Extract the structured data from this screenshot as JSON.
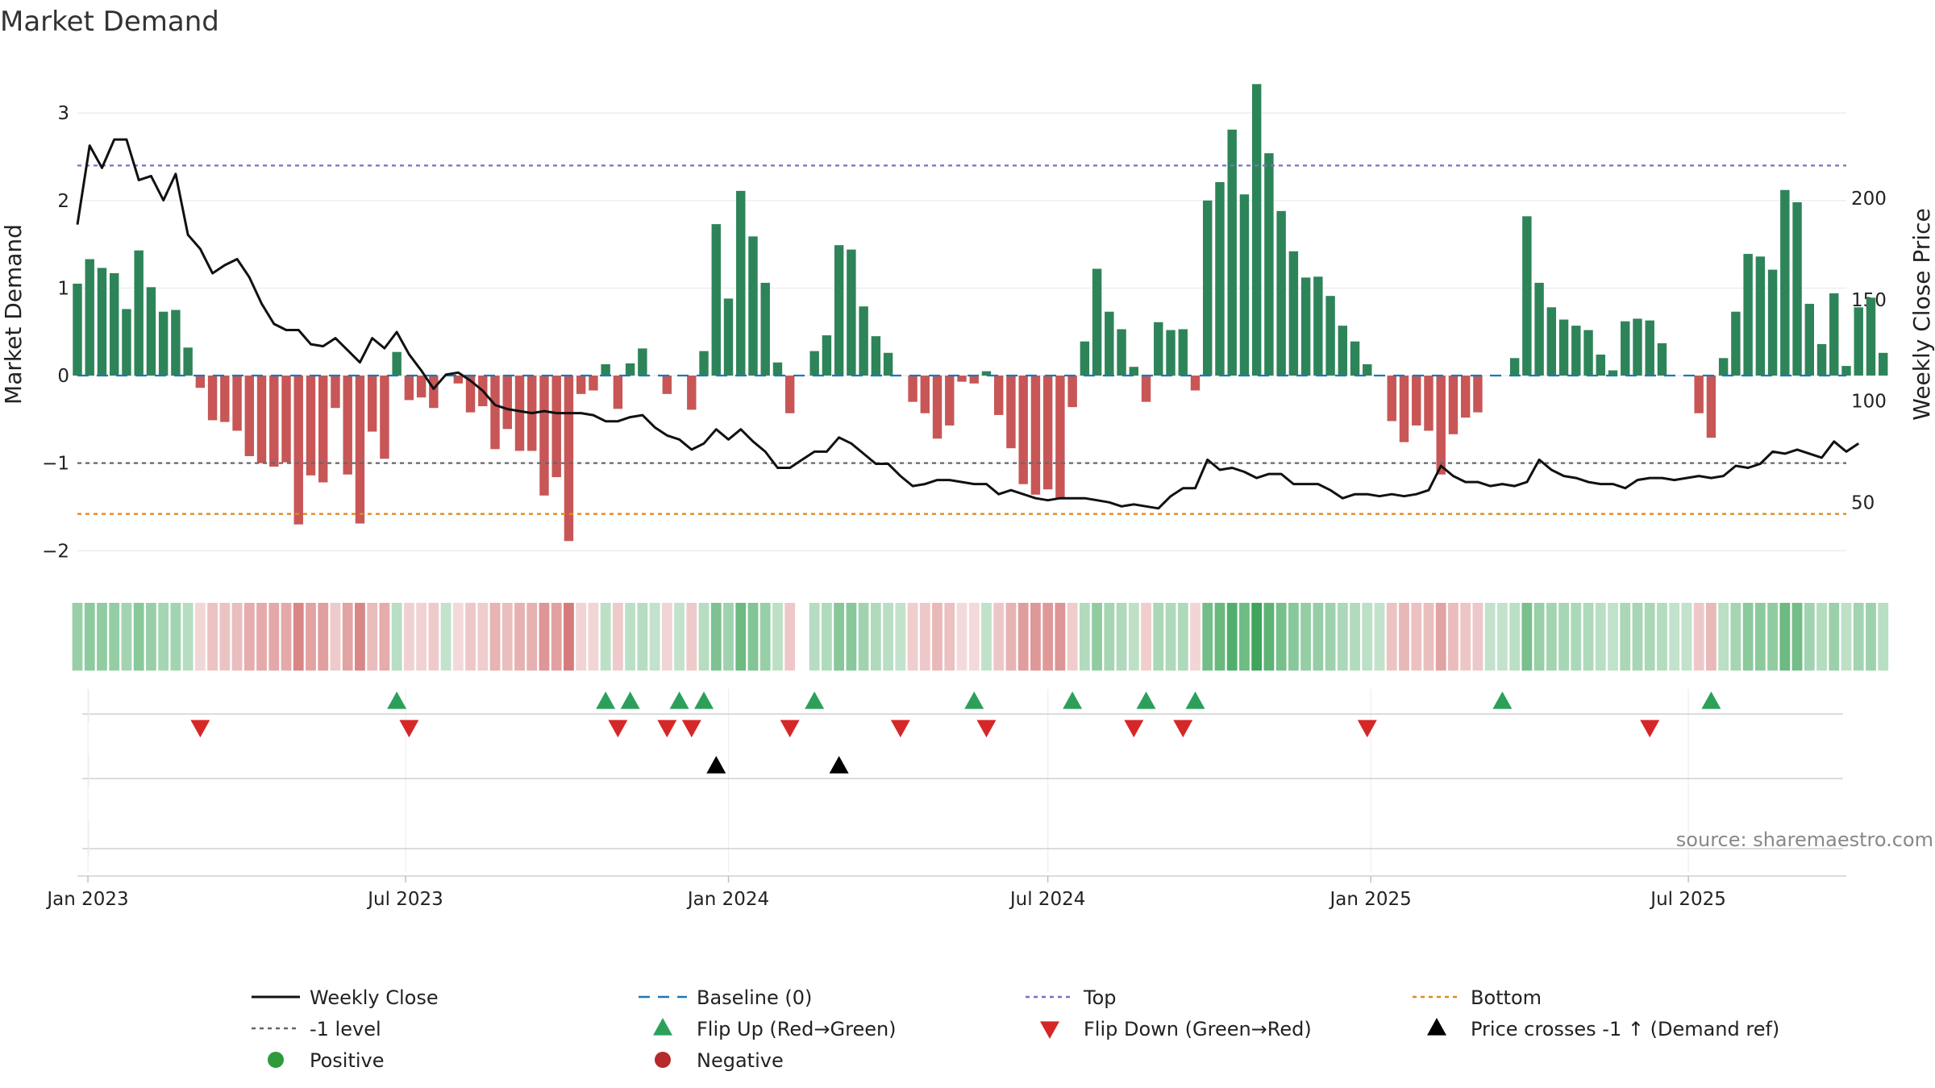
{
  "chart_data": {
    "type": "bar",
    "title": "Market Demand",
    "ylabel": "Market Demand",
    "y2label": "Weekly Close Price",
    "ylim": [
      -2.2,
      3.6
    ],
    "y2lim": [
      17.5,
      268
    ],
    "yticks": [
      -2,
      -1,
      0,
      1,
      2,
      3
    ],
    "yticklabels": [
      "−2",
      "−1",
      "0",
      "1",
      "2",
      "3"
    ],
    "y2ticks": [
      50,
      100,
      150,
      200
    ],
    "xlim": [
      "2022-12-26",
      "2025-09-29"
    ],
    "xticks": [
      {
        "date": "2023-01-01",
        "label": "Jan 2023"
      },
      {
        "date": "2023-07-01",
        "label": "Jul 2023"
      },
      {
        "date": "2024-01-01",
        "label": "Jan 2024"
      },
      {
        "date": "2024-07-01",
        "label": "Jul 2024"
      },
      {
        "date": "2025-01-01",
        "label": "Jan 2025"
      },
      {
        "date": "2025-07-01",
        "label": "Jul 2025"
      }
    ],
    "reference_lines": {
      "top": 2.4,
      "minus_one": -1,
      "bottom": -1.58,
      "baseline": 0
    },
    "start_date": "2022-12-26",
    "week_interval_days": 7,
    "demand": [
      1.05,
      1.33,
      1.23,
      1.17,
      0.76,
      1.43,
      1.01,
      0.73,
      0.75,
      0.32,
      -0.14,
      -0.51,
      -0.53,
      -0.63,
      -0.92,
      -1.0,
      -1.04,
      -0.99,
      -1.7,
      -1.14,
      -1.22,
      -0.37,
      -1.13,
      -1.69,
      -0.64,
      -0.95,
      0.27,
      -0.28,
      -0.25,
      -0.37,
      0.0,
      -0.09,
      -0.42,
      -0.35,
      -0.84,
      -0.61,
      -0.86,
      -0.86,
      -1.37,
      -1.16,
      -1.89,
      -0.21,
      -0.17,
      0.13,
      -0.38,
      0.14,
      0.31,
      0.0,
      -0.21,
      0.0,
      -0.39,
      0.28,
      1.73,
      0.88,
      2.11,
      1.59,
      1.06,
      0.15,
      -0.43,
      0.0,
      0.28,
      0.46,
      1.49,
      1.44,
      0.79,
      0.45,
      0.26,
      0.0,
      -0.3,
      -0.43,
      -0.72,
      -0.57,
      -0.07,
      -0.09,
      0.05,
      -0.45,
      -0.83,
      -1.24,
      -1.36,
      -1.3,
      -1.4,
      -0.36,
      0.39,
      1.22,
      0.73,
      0.53,
      0.1,
      -0.3,
      0.61,
      0.52,
      0.53,
      -0.17,
      2.0,
      2.21,
      2.81,
      2.07,
      3.33,
      2.54,
      1.88,
      1.42,
      1.12,
      1.13,
      0.91,
      0.57,
      0.39,
      0.13,
      0.0,
      -0.52,
      -0.76,
      -0.57,
      -0.63,
      -1.13,
      -0.67,
      -0.48,
      -0.42,
      0.0,
      0.0,
      0.2,
      1.82,
      1.06,
      0.78,
      0.64,
      0.57,
      0.52,
      0.24,
      0.06,
      0.62,
      0.65,
      0.63,
      0.37,
      0.0,
      0.0,
      -0.43,
      -0.71,
      0.2,
      0.73,
      1.39,
      1.36,
      1.21,
      2.12,
      1.98,
      0.82,
      0.36,
      0.94,
      0.11,
      0.78,
      0.89,
      0.26
    ],
    "weekly_close": [
      187,
      226,
      215,
      229,
      229,
      209,
      211,
      199,
      212,
      182,
      175,
      163,
      167,
      170,
      161,
      148,
      138,
      135,
      135,
      128,
      127,
      131,
      125,
      119,
      131,
      126,
      134,
      123,
      115,
      106,
      113,
      114,
      110,
      105,
      98,
      96,
      95,
      94,
      95,
      94,
      94,
      94,
      93,
      90,
      90,
      92,
      93,
      87,
      83,
      81,
      76,
      79,
      86,
      81,
      86,
      80,
      75,
      67,
      67,
      71,
      75,
      75,
      82,
      79,
      74,
      69,
      69,
      63,
      58,
      59,
      61,
      61,
      60,
      59,
      59,
      54,
      56,
      54,
      52,
      51,
      52,
      52,
      52,
      51,
      50,
      48,
      49,
      48,
      47,
      53,
      57,
      57,
      71,
      66,
      67,
      65,
      62,
      64,
      64,
      59,
      59,
      59,
      56,
      52,
      54,
      54,
      53,
      54,
      53,
      54,
      56,
      68,
      63,
      60,
      60,
      58,
      59,
      58,
      60,
      71,
      66,
      63,
      62,
      60,
      59,
      59,
      57,
      61,
      62,
      62,
      61,
      62,
      63,
      62,
      63,
      68,
      67,
      69,
      75,
      74,
      76,
      74,
      72,
      80,
      75,
      79
    ],
    "strip_gaps": [
      59
    ],
    "flip_up_weeks": [
      26,
      43,
      45,
      49,
      51,
      60,
      73,
      81,
      87,
      91,
      116,
      133
    ],
    "flip_down_weeks": [
      10,
      27,
      44,
      48,
      50,
      58,
      67,
      74,
      86,
      90,
      105,
      128
    ],
    "price_cross_weeks": [
      52,
      62
    ],
    "source": "source: sharemaestro.com",
    "legend": [
      {
        "label": "Weekly Close",
        "kind": "line-solid",
        "color": "#111111"
      },
      {
        "label": "Baseline (0)",
        "kind": "line-dash",
        "color": "#1f77b4"
      },
      {
        "label": "Top",
        "kind": "line-dot",
        "color": "#7a6fc4"
      },
      {
        "label": "Bottom",
        "kind": "line-dot",
        "color": "#e08a1e"
      },
      {
        "label": "-1 level",
        "kind": "line-dot",
        "color": "#666666"
      },
      {
        "label": "Flip Up (Red→Green)",
        "kind": "tri-up",
        "color": "#2ca05a"
      },
      {
        "label": "Flip Down (Green→Red)",
        "kind": "tri-down",
        "color": "#d62728"
      },
      {
        "label": "Price crosses -1 ↑ (Demand ref)",
        "kind": "tri-up",
        "color": "#000000"
      },
      {
        "label": "Positive",
        "kind": "dot",
        "color": "#2e9a3b"
      },
      {
        "label": "Negative",
        "kind": "dot",
        "color": "#b52a2a"
      }
    ]
  },
  "colors": {
    "positive_bar": "#2e8459",
    "negative_bar": "#c85656",
    "price_line": "#111111",
    "grid": "#e9e9e9",
    "axis": "#cccccc"
  }
}
